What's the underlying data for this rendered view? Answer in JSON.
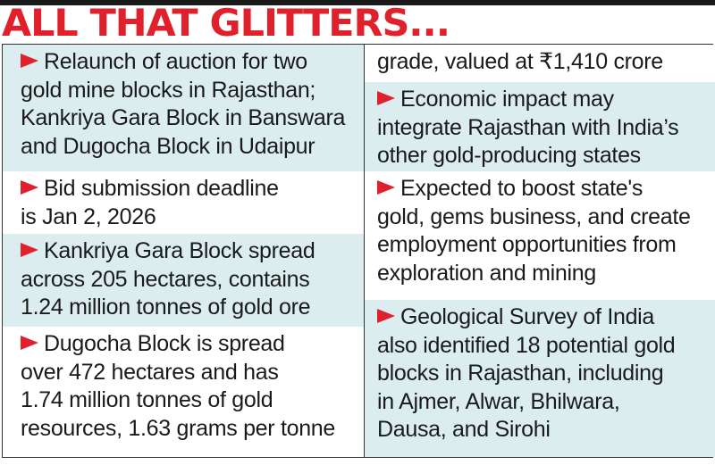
{
  "title": "ALL THAT GLITTERS...",
  "accent_color": "#e0202a",
  "bullet_icon": "red-arrowhead",
  "left_column": [
    {
      "lines": [
        "Relaunch of auction for two",
        "gold mine blocks in Rajasthan;",
        "Kankriya Gara Block in Banswara",
        "and Dugocha Block in Udaipur"
      ]
    },
    {
      "lines": [
        "Bid submission deadline",
        "is Jan 2, 2026"
      ]
    },
    {
      "lines": [
        "Kankriya Gara Block spread",
        "across 205 hectares, contains",
        "1.24 million tonnes of gold ore"
      ]
    },
    {
      "lines": [
        "Dugocha Block is spread",
        "over 472 hectares and has",
        "1.74 million tonnes of gold",
        "resources, 1.63 grams per tonne"
      ]
    }
  ],
  "right_column": [
    {
      "lines": [
        "grade, valued at ₹1,410 crore"
      ]
    },
    {
      "lines": [
        "Economic impact may",
        "integrate Rajasthan with India’s",
        "other gold-producing states"
      ]
    },
    {
      "lines": [
        "Expected to boost state's",
        "gold, gems business, and create",
        "employment opportunities from",
        "exploration and mining"
      ]
    },
    {
      "lines": [
        "Geological Survey of India",
        "also identified 18 potential gold",
        "blocks in Rajasthan, including",
        "in Ajmer, Alwar, Bhilwara,",
        "Dausa, and Sirohi"
      ]
    }
  ]
}
